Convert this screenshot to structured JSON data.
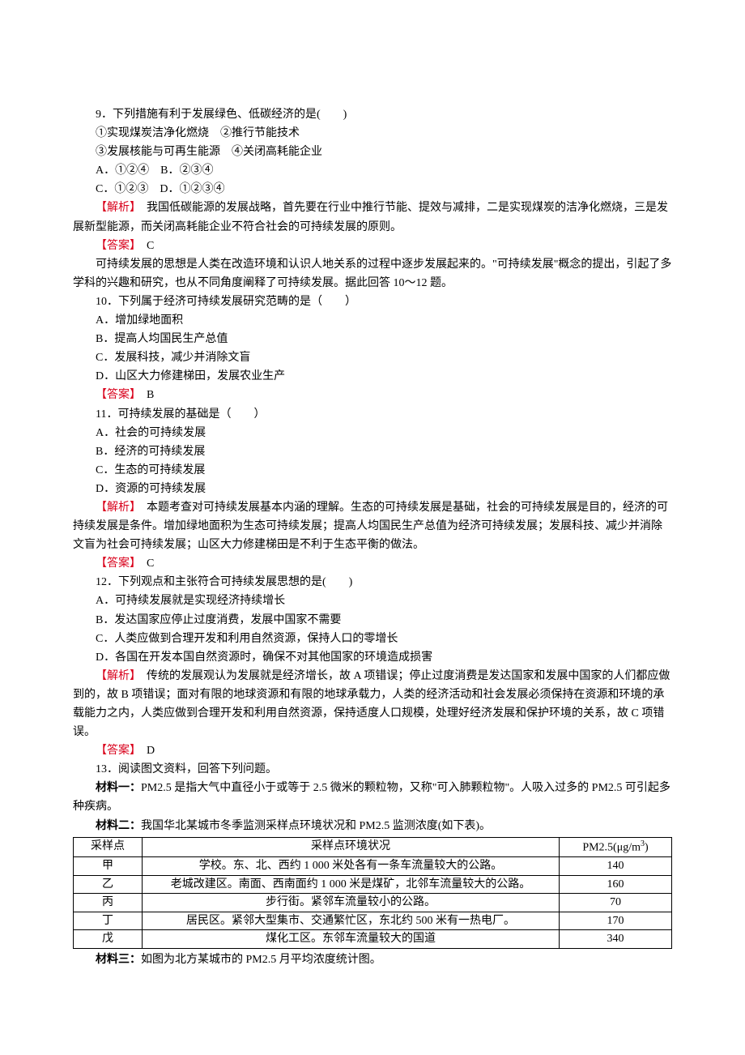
{
  "q9": {
    "stem": "9．下列措施有利于发展绿色、低碳经济的是(　　)",
    "opts_line": "①实现煤炭洁净化燃烧　②推行节能技术",
    "opts_line2": "③发展核能与可再生能源　④关闭高耗能企业",
    "A": "A．①②④　B．②③④",
    "C": "C．①②③　D．①②③④",
    "jiexi_label": "【解析】",
    "jiexi": "　我国低碳能源的发展战略，首先要在行业中推行节能、提效与减排，二是实现煤炭的洁净化燃烧，三是发展新型能源，而关闭高耗能企业不符合社会的可持续发展的原则。",
    "ans_label": "【答案】",
    "ans": "　C"
  },
  "intro1012": "可持续发展的思想是人类在改造环境和认识人地关系的过程中逐步发展起来的。\"可持续发展\"概念的提出，引起了多学科的兴趣和研究，也从不同角度阐释了可持续发展。据此回答 10～12 题。",
  "q10": {
    "stem": "10．下列属于经济可持续发展研究范畴的是（　　）",
    "A": "A．增加绿地面积",
    "B": "B．提高人均国民生产总值",
    "C": "C．发展科技，减少并消除文盲",
    "D": "D．山区大力修建梯田，发展农业生产",
    "ans_label": "【答案】",
    "ans": "　B"
  },
  "q11": {
    "stem": "11．可持续发展的基础是（　　）",
    "A": "A．社会的可持续发展",
    "B": "B．经济的可持续发展",
    "C": "C．生态的可持续发展",
    "D": "D．资源的可持续发展",
    "jiexi_label": "【解析】",
    "jiexi": "　本题考查对可持续发展基本内涵的理解。生态的可持续发展是基础，社会的可持续发展是目的，经济的可持续发展是条件。增加绿地面积为生态可持续发展；提高人均国民生产总值为经济可持续发展；发展科技、减少并消除文盲为社会可持续发展；山区大力修建梯田是不利于生态平衡的做法。",
    "ans_label": "【答案】",
    "ans": "　C"
  },
  "q12": {
    "stem": "12．下列观点和主张符合可持续发展思想的是(　　)",
    "A": "A．可持续发展就是实现经济持续增长",
    "B": "B．发达国家应停止过度消费，发展中国家不需要",
    "C": "C．人类应做到合理开发和利用自然资源，保持人口的零增长",
    "D": "D．各国在开发本国自然资源时，确保不对其他国家的环境造成损害",
    "jiexi_label": "【解析】",
    "jiexi": "　传统的发展观认为发展就是经济增长，故 A 项错误；停止过度消费是发达国家和发展中国家的人们都应做到的，故 B 项错误；面对有限的地球资源和有限的地球承载力，人类的经济活动和社会发展必须保持在资源和环境的承载能力之内，人类应做到合理开发和利用自然资源，保持适度人口规模，处理好经济发展和保护环境的关系，故 C 项错误。",
    "ans_label": "【答案】",
    "ans": "　D"
  },
  "q13": {
    "stem": "13．阅读图文资料，回答下列问题。",
    "m1_label": "材料一：",
    "m1": "PM2.5 是指大气中直径小于或等于 2.5 微米的颗粒物，又称\"可入肺颗粒物\"。人吸入过多的 PM2.5 可引起多种疾病。",
    "m2_label": "材料二：",
    "m2": "我国华北某城市冬季监测采样点环境状况和 PM2.5 监测浓度(如下表)。",
    "m3_label": "材料三：",
    "m3": "如图为北方某城市的 PM2.5 月平均浓度统计图。"
  },
  "table": {
    "h1": "采样点",
    "h2": "采样点环境状况",
    "h3_a": "PM2.5(μg/m",
    "h3_b": "3",
    "h3_c": ")",
    "rows": [
      {
        "p": "甲",
        "env": "学校。东、北、西约 1 000 米处各有一条车流量较大的公路。",
        "v": "140"
      },
      {
        "p": "乙",
        "env": "老城改建区。南面、西南面约 1 000 米是煤矿，北邻车流量较大的公路。",
        "v": "160"
      },
      {
        "p": "丙",
        "env": "步行街。紧邻车流量较小的公路。",
        "v": "70"
      },
      {
        "p": "丁",
        "env": "居民区。紧邻大型集市、交通繁忙区，东北约 500 米有一热电厂。",
        "v": "170"
      },
      {
        "p": "戊",
        "env": "煤化工区。东邻车流量较大的国道",
        "v": "340"
      }
    ]
  }
}
